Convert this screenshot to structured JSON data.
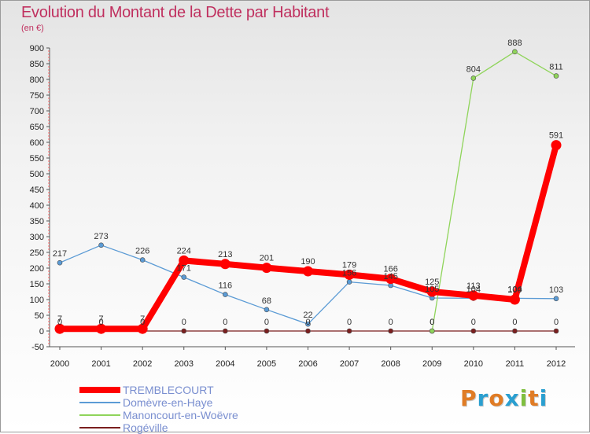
{
  "title": "Evolution du Montant de la Dette par Habitant",
  "unit": "(en €)",
  "brand": {
    "letters": [
      "P",
      "r",
      "o",
      "x",
      "i",
      "t",
      "i"
    ],
    "colors": [
      "#e07c25",
      "#2a9fd0",
      "#e07c25",
      "#2a9fd0",
      "#7fbf3f",
      "#e07c25",
      "#2a9fd0"
    ]
  },
  "chart_data": {
    "type": "line",
    "x": [
      "2000",
      "2001",
      "2002",
      "2003",
      "2004",
      "2005",
      "2006",
      "2007",
      "2008",
      "2009",
      "2010",
      "2011",
      "2012"
    ],
    "ylim": [
      -50,
      900
    ],
    "yticks": [
      -50,
      0,
      50,
      100,
      150,
      200,
      250,
      300,
      350,
      400,
      450,
      500,
      550,
      600,
      650,
      700,
      750,
      800,
      850,
      900
    ],
    "grid": false,
    "legend": "bottom-left",
    "series": [
      {
        "name": "Rogéville",
        "color": "#7a1e1e",
        "values": [
          0,
          0,
          0,
          0,
          0,
          0,
          0,
          0,
          0,
          0,
          0,
          0,
          0
        ],
        "labels": [
          "0",
          "0",
          "0",
          "0",
          "0",
          "0",
          "0",
          "0",
          "0",
          "0",
          "0",
          "0",
          "0"
        ]
      },
      {
        "name": "Domèvre-en-Haye",
        "color": "#5b9bd5",
        "values": [
          217,
          273,
          226,
          171,
          116,
          68,
          22,
          156,
          145,
          105,
          104,
          104,
          103
        ],
        "labels": [
          "217",
          "273",
          "226",
          "171",
          "116",
          "68",
          "22",
          "156",
          "145",
          "105",
          "104",
          "104",
          "103"
        ]
      },
      {
        "name": "Manoncourt-en-Woëvre",
        "color": "#8fd45a",
        "values": [
          null,
          null,
          null,
          null,
          null,
          null,
          null,
          null,
          null,
          0,
          804,
          888,
          811
        ],
        "labels": [
          "",
          "",
          "",
          "",
          "",
          "",
          "",
          "",
          "",
          "0",
          "804",
          "888",
          "811"
        ]
      },
      {
        "name": "TREMBLECOURT",
        "color": "#ff0000",
        "values": [
          7,
          7,
          7,
          224,
          213,
          201,
          190,
          179,
          166,
          125,
          113,
          100,
          591
        ],
        "labels": [
          "7",
          "7",
          "7",
          "224",
          "213",
          "201",
          "190",
          "179",
          "166",
          "125",
          "113",
          "100",
          "591"
        ]
      }
    ]
  },
  "legend": [
    {
      "label": "TREMBLECOURT",
      "color": "#ff0000",
      "weight": 8
    },
    {
      "label": "Domèvre-en-Haye",
      "color": "#5b9bd5",
      "weight": 2
    },
    {
      "label": "Manoncourt-en-Woëvre",
      "color": "#8fd45a",
      "weight": 2
    },
    {
      "label": "Rogéville",
      "color": "#7a1e1e",
      "weight": 2
    }
  ]
}
